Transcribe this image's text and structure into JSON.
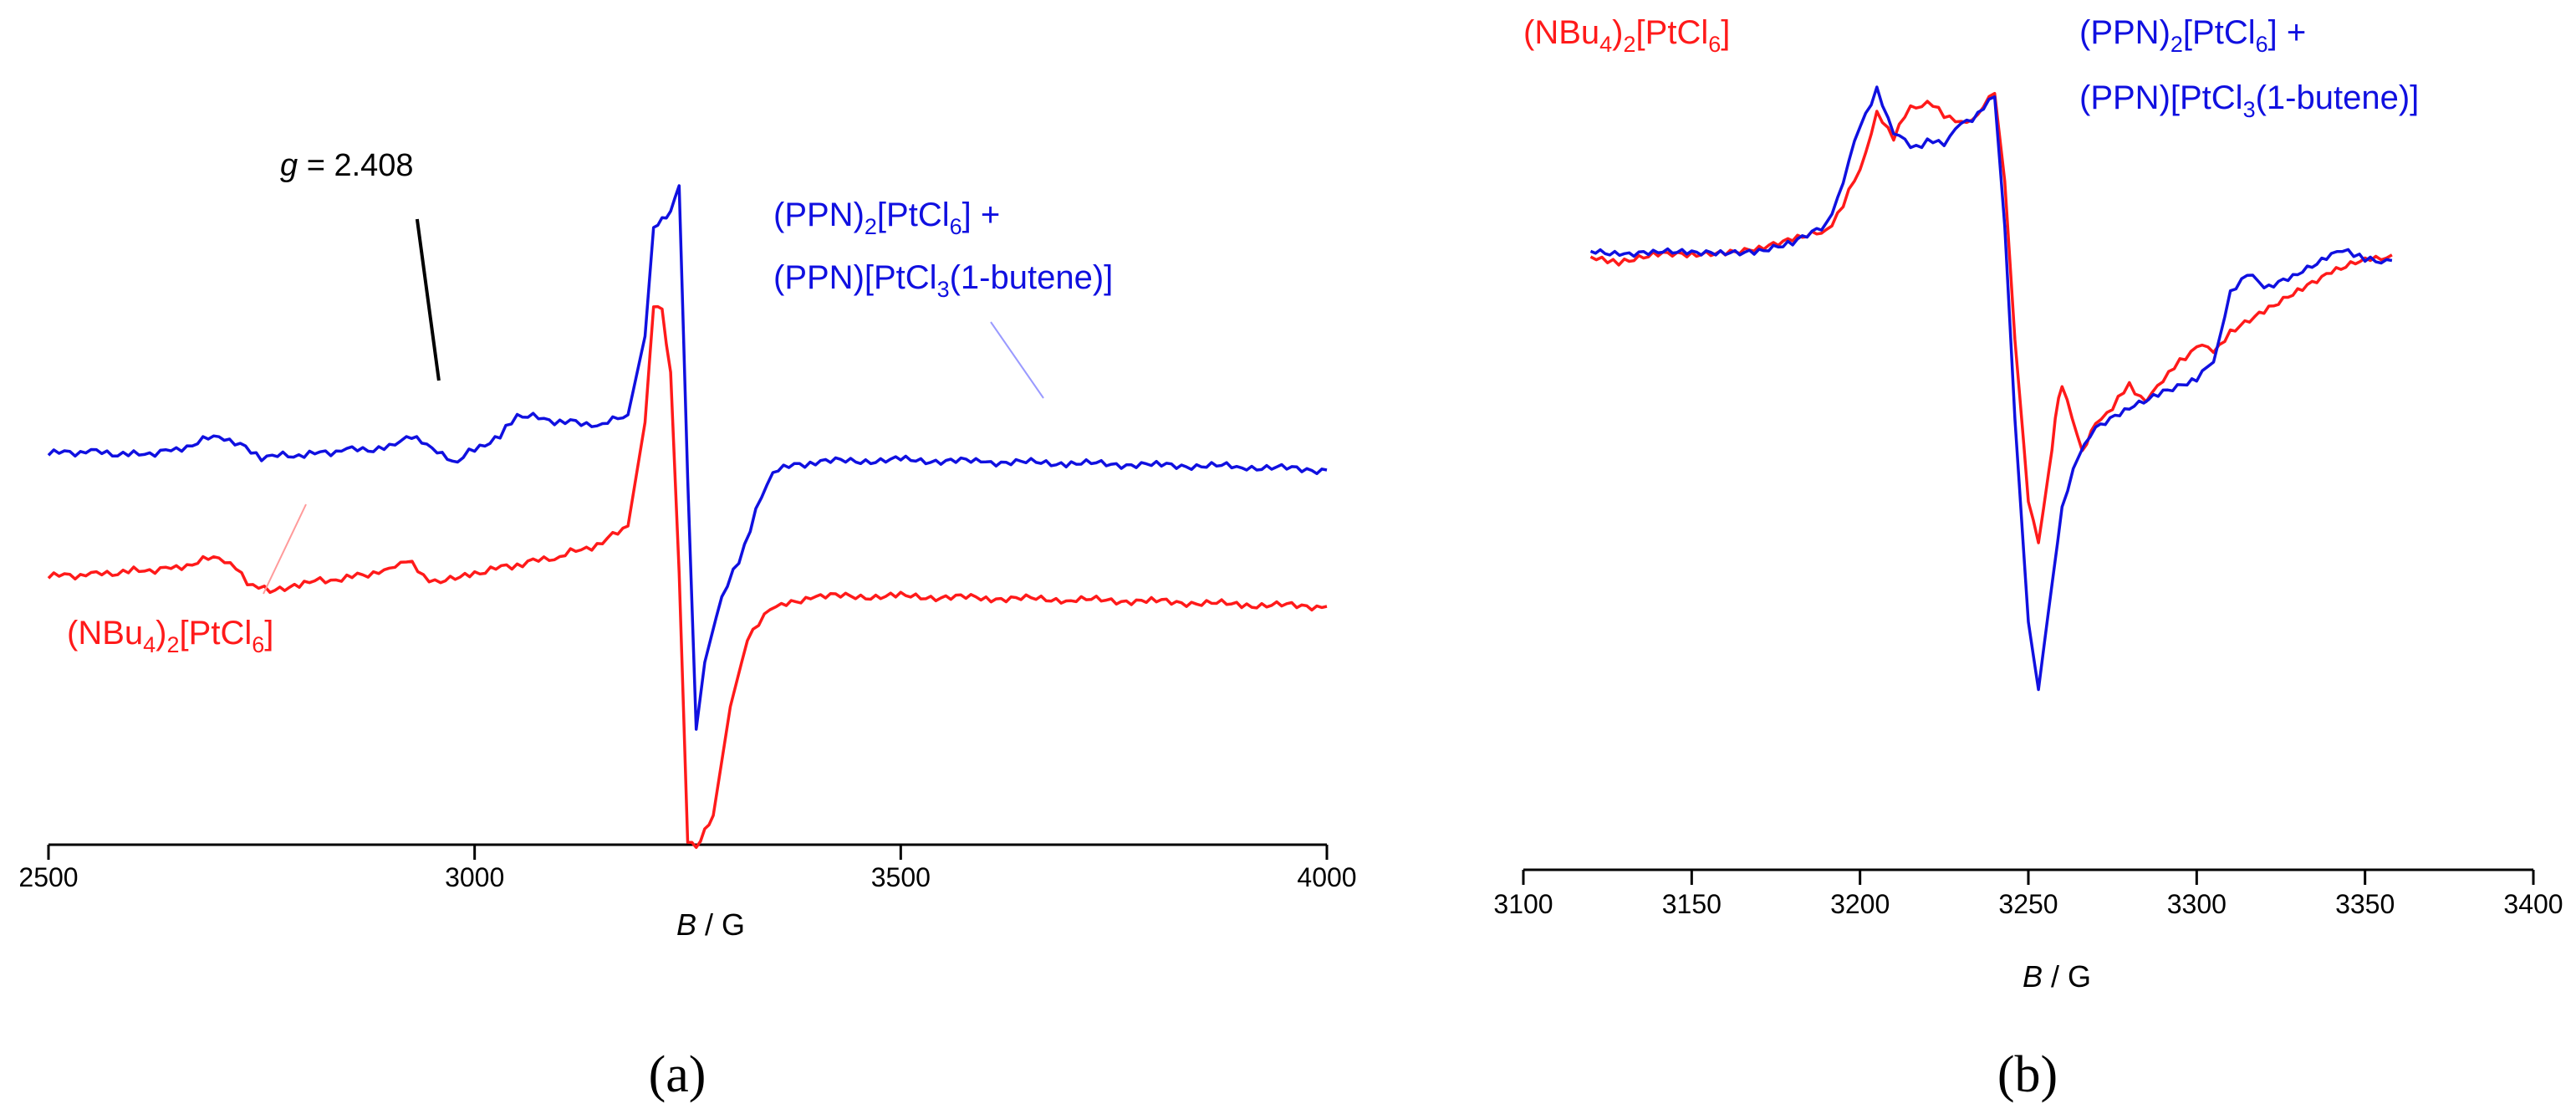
{
  "colors": {
    "red": "#ff1a1a",
    "blue": "#1010e0",
    "axis": "#000000",
    "annotation": "#000000"
  },
  "chart_data": [
    {
      "type": "line",
      "panel_label": "(a)",
      "xlabel_var": "B",
      "xlabel_unit": " / G",
      "xlim": [
        2500,
        4000
      ],
      "x_ticks": [
        "2500",
        "3000",
        "3500",
        "4000"
      ],
      "y_axis_shown": false,
      "grid": false,
      "annotation": {
        "g_symbol": "g",
        "text": " = 2.408",
        "g_value": 2.408,
        "points_to_B": 2960
      },
      "series": [
        {
          "color": "red",
          "label_parts": [
            "(NBu",
            "4",
            ")",
            "2",
            "[PtCl",
            "6",
            "]"
          ],
          "x": [
            2500,
            2550,
            2600,
            2650,
            2700,
            2720,
            2740,
            2760,
            2800,
            2850,
            2900,
            2920,
            2940,
            2960,
            3000,
            3050,
            3100,
            3150,
            3180,
            3200,
            3210,
            3220,
            3230,
            3240,
            3250,
            3260,
            3270,
            3280,
            3300,
            3320,
            3340,
            3360,
            3400,
            3500,
            3600,
            3700,
            3800,
            3900,
            4000
          ],
          "y": [
            -0.62,
            -0.61,
            -0.59,
            -0.57,
            -0.5,
            -0.58,
            -0.68,
            -0.7,
            -0.66,
            -0.63,
            -0.58,
            -0.52,
            -0.62,
            -0.66,
            -0.6,
            -0.55,
            -0.5,
            -0.42,
            -0.32,
            0.3,
            1.0,
            0.98,
            0.6,
            -0.6,
            -2.2,
            -2.25,
            -2.15,
            -2.05,
            -1.4,
            -1.0,
            -0.85,
            -0.78,
            -0.74,
            -0.74,
            -0.75,
            -0.76,
            -0.77,
            -0.79,
            -0.8
          ]
        },
        {
          "color": "blue",
          "label_parts": [
            "(PPN)",
            "2",
            "[PtCl",
            "6",
            "] + ",
            "(PPN)[PtCl",
            "3",
            "(1-butene)]"
          ],
          "x": [
            2500,
            2550,
            2600,
            2650,
            2700,
            2750,
            2800,
            2850,
            2900,
            2920,
            2950,
            2980,
            3000,
            3030,
            3050,
            3100,
            3150,
            3180,
            3200,
            3210,
            3220,
            3230,
            3240,
            3250,
            3260,
            3270,
            3290,
            3310,
            3330,
            3350,
            3400,
            3500,
            3600,
            3700,
            3800,
            3900,
            4000
          ],
          "y": [
            -0.35,
            -0.34,
            -0.36,
            -0.33,
            -0.24,
            -0.37,
            -0.36,
            -0.33,
            -0.32,
            -0.24,
            -0.32,
            -0.4,
            -0.32,
            -0.25,
            -0.12,
            -0.16,
            -0.18,
            -0.12,
            0.35,
            1.0,
            1.05,
            1.1,
            1.25,
            -0.5,
            -2.0,
            -1.6,
            -1.2,
            -1.0,
            -0.7,
            -0.45,
            -0.4,
            -0.39,
            -0.4,
            -0.41,
            -0.42,
            -0.43,
            -0.45
          ]
        }
      ]
    },
    {
      "type": "line",
      "panel_label": "(b)",
      "xlabel_var": "B",
      "xlabel_unit": " / G",
      "xlim": [
        3100,
        3400
      ],
      "x_ticks": [
        "3100",
        "3150",
        "3200",
        "3250",
        "3300",
        "3350",
        "3400"
      ],
      "y_axis_shown": false,
      "grid": false,
      "series": [
        {
          "color": "red",
          "label_parts": [
            "(NBu",
            "4",
            ")",
            "2",
            "[PtCl",
            "6",
            "]"
          ],
          "x": [
            3120,
            3125,
            3130,
            3140,
            3150,
            3160,
            3170,
            3180,
            3190,
            3195,
            3200,
            3205,
            3210,
            3215,
            3220,
            3225,
            3230,
            3235,
            3240,
            3243,
            3246,
            3250,
            3253,
            3256,
            3258,
            3260,
            3263,
            3266,
            3270,
            3275,
            3280,
            3285,
            3290,
            3295,
            3300,
            3305,
            3310,
            3320,
            3330,
            3340,
            3350,
            3358
          ],
          "y": [
            -0.05,
            -0.12,
            -0.1,
            -0.05,
            -0.06,
            -0.02,
            0.02,
            0.08,
            0.15,
            0.4,
            0.7,
            1.2,
            1.0,
            1.25,
            1.3,
            1.2,
            1.1,
            1.2,
            1.38,
            0.6,
            -0.8,
            -2.2,
            -2.6,
            -2.0,
            -1.5,
            -1.2,
            -1.5,
            -1.8,
            -1.55,
            -1.4,
            -1.2,
            -1.35,
            -1.15,
            -1.0,
            -0.85,
            -0.9,
            -0.75,
            -0.55,
            -0.35,
            -0.2,
            -0.1,
            -0.05
          ]
        },
        {
          "color": "blue",
          "label_parts": [
            "(PPN)",
            "2",
            "[PtCl",
            "6",
            "] + ",
            "(PPN)[PtCl",
            "3",
            "(1-butene)]"
          ],
          "x": [
            3120,
            3130,
            3140,
            3150,
            3160,
            3170,
            3180,
            3190,
            3195,
            3200,
            3205,
            3210,
            3215,
            3220,
            3225,
            3230,
            3235,
            3240,
            3243,
            3246,
            3250,
            3253,
            3256,
            3260,
            3265,
            3270,
            3280,
            3290,
            3300,
            3305,
            3310,
            3315,
            3320,
            3330,
            3340,
            3345,
            3350,
            3358
          ],
          "y": [
            0.0,
            -0.04,
            -0.03,
            -0.04,
            -0.02,
            -0.01,
            0.05,
            0.2,
            0.6,
            1.1,
            1.4,
            1.05,
            0.9,
            0.95,
            0.95,
            1.1,
            1.2,
            1.35,
            0.2,
            -1.5,
            -3.3,
            -3.9,
            -3.2,
            -2.3,
            -1.8,
            -1.6,
            -1.4,
            -1.25,
            -1.15,
            -1.0,
            -0.4,
            -0.2,
            -0.35,
            -0.2,
            -0.05,
            0.0,
            -0.1,
            -0.1
          ]
        }
      ]
    }
  ]
}
